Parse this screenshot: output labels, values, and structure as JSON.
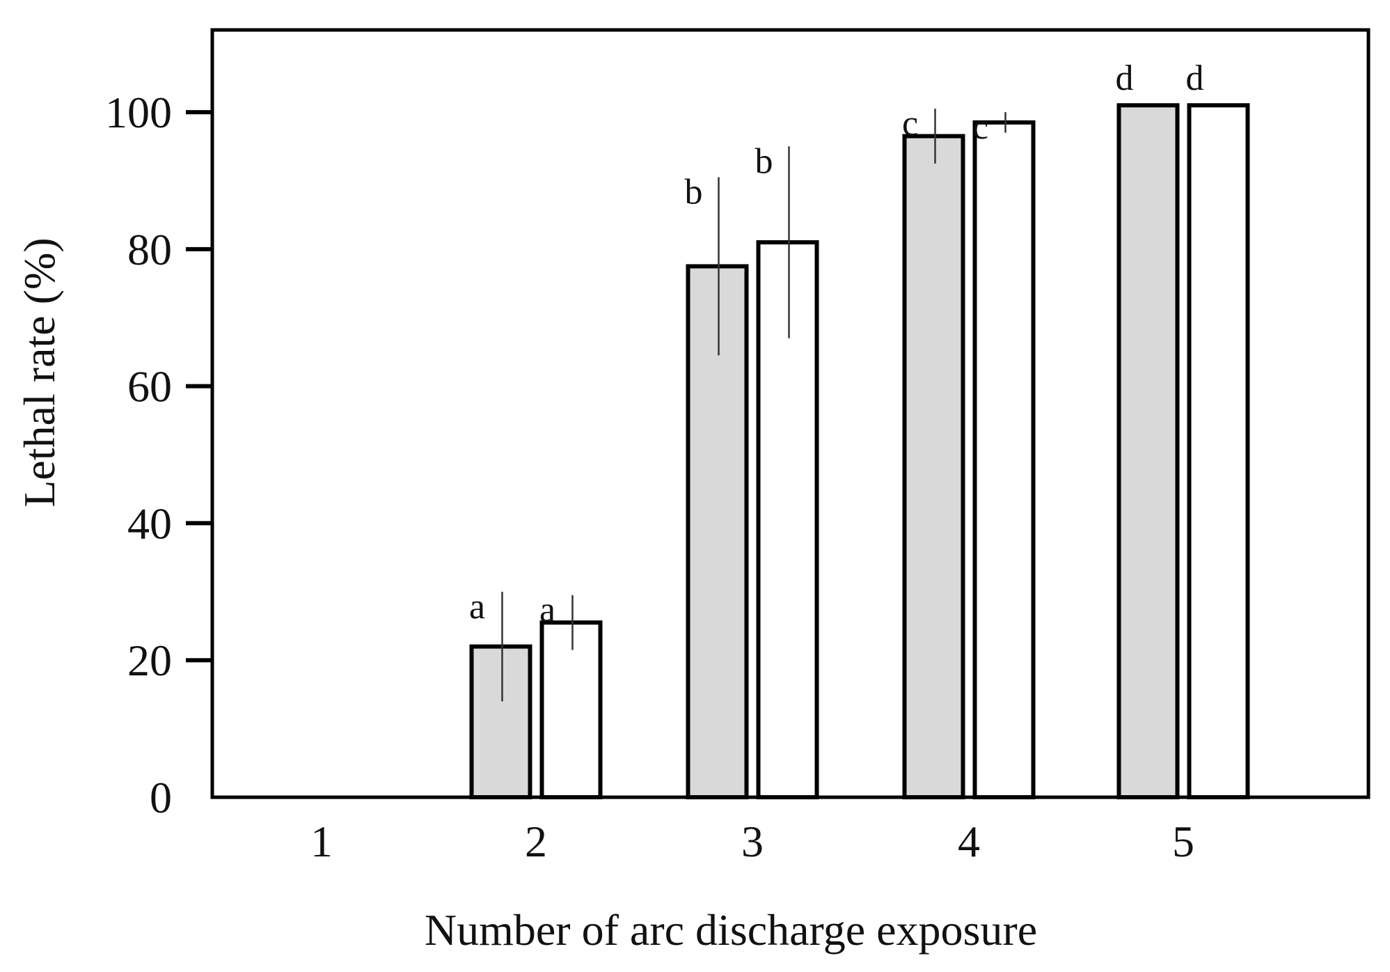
{
  "chart_data": {
    "type": "bar",
    "title": "",
    "xlabel": "Number of arc discharge exposure",
    "ylabel": "Lethal rate (%)",
    "categories": [
      "1",
      "2",
      "3",
      "4",
      "5"
    ],
    "ylim": [
      0,
      112
    ],
    "yticks": [
      0,
      20,
      40,
      60,
      80,
      100
    ],
    "grid": false,
    "legend": "none",
    "series": [
      {
        "fill": "#d9d9d9",
        "values": [
          0,
          22,
          77.5,
          96.5,
          101
        ],
        "error": [
          0,
          8,
          13,
          4,
          0
        ],
        "sig_labels": [
          "",
          "a",
          "b",
          "c",
          "d"
        ]
      },
      {
        "fill": "#ffffff",
        "values": [
          0,
          25.5,
          81,
          98.5,
          101
        ],
        "error": [
          0,
          4,
          14,
          1.5,
          0
        ],
        "sig_labels": [
          "",
          "a",
          "b",
          "c",
          "d"
        ]
      }
    ],
    "colors": {
      "axis": "#000000",
      "bar_stroke": "#000000",
      "error_bar": "#333333"
    }
  }
}
